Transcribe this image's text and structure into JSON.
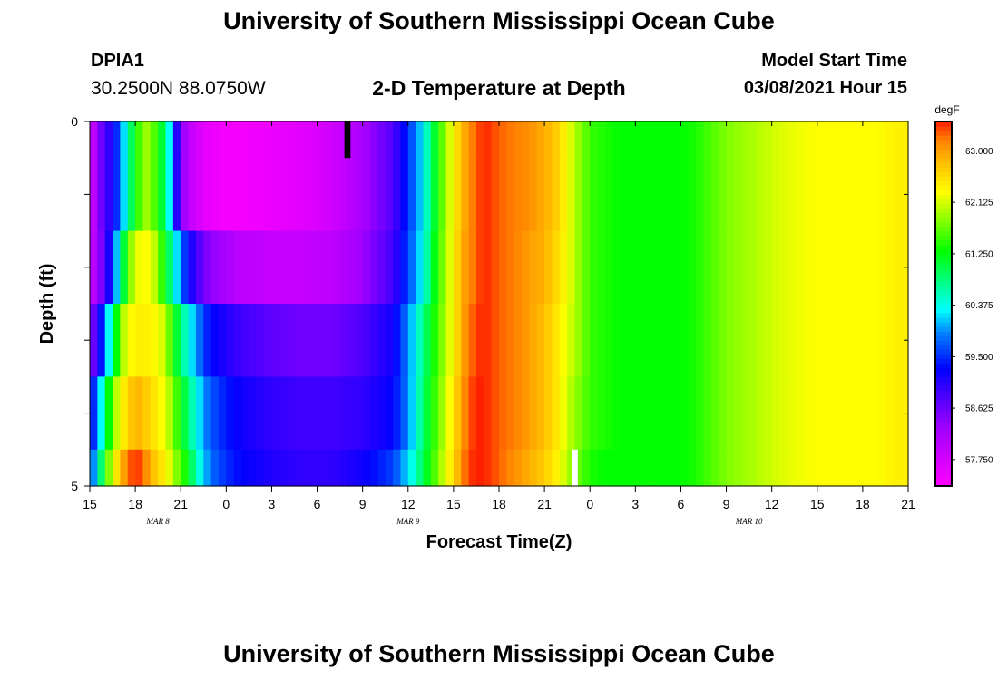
{
  "header": {
    "title": "University of Southern Mississippi Ocean Cube",
    "station_id": "DPIA1",
    "coords": "30.2500N 88.0750W",
    "plot_title": "2-D Temperature at Depth",
    "model_start_label": "Model Start Time",
    "model_start_value": "03/08/2021 Hour 15"
  },
  "footer": {
    "title": "University of Southern Mississippi Ocean Cube"
  },
  "colors": {
    "background": "#ffffff",
    "axis": "#000000",
    "marker_black": "#000000",
    "marker_white": "#ffffff"
  },
  "chart_data": {
    "type": "heatmap",
    "title": "2-D Temperature at Depth",
    "xlabel": "Forecast Time(Z)",
    "ylabel": "Depth (ft)",
    "x_unit": "hours since 03/08 15Z",
    "x_range": [
      0,
      54
    ],
    "y_range": [
      0,
      5
    ],
    "x_tick_hours": [
      0,
      3,
      6,
      9,
      12,
      15,
      18,
      21,
      24,
      27,
      30,
      33,
      36,
      39,
      42,
      45,
      48,
      51,
      54
    ],
    "x_tick_labels": [
      "15",
      "18",
      "21",
      "0",
      "3",
      "6",
      "9",
      "12",
      "15",
      "18",
      "21",
      "0",
      "3",
      "6",
      "9",
      "12",
      "15",
      "18",
      "21"
    ],
    "y_tick_values": [
      0,
      1,
      2,
      3,
      4,
      5
    ],
    "y_tick_labels": [
      "0",
      "",
      "",
      "",
      "",
      "5"
    ],
    "date_labels": [
      {
        "text": "MAR 8",
        "hour": 4.5
      },
      {
        "text": "MAR 9",
        "hour": 21
      },
      {
        "text": "MAR 10",
        "hour": 43.5
      }
    ],
    "colorbar": {
      "unit": "degF",
      "min": 57.3,
      "max": 63.5,
      "ticks": [
        "63.000",
        "62.125",
        "61.250",
        "60.375",
        "59.500",
        "58.625",
        "57.750"
      ],
      "tick_values": [
        63.0,
        62.125,
        61.25,
        60.375,
        59.5,
        58.625,
        57.75
      ],
      "colors": [
        "#ff00ff",
        "#a000ff",
        "#4000ff",
        "#0000ff",
        "#0080ff",
        "#00ffff",
        "#00ff80",
        "#00ff00",
        "#80ff00",
        "#ffff00",
        "#ffc000",
        "#ff8000",
        "#ff2000"
      ],
      "color_values": [
        57.3,
        58.3,
        58.9,
        59.3,
        59.9,
        60.3,
        60.8,
        61.3,
        61.8,
        62.3,
        62.8,
        63.2,
        63.5
      ]
    },
    "depth_layers": [
      0,
      0.5,
      1.5,
      2.5,
      3.5,
      4.5
    ],
    "profile_hours": [
      0,
      0.5,
      1,
      1.5,
      2,
      2.5,
      3,
      3.5,
      4,
      4.5,
      5,
      5.5,
      6,
      6.5,
      7,
      7.5,
      8,
      9,
      10,
      12,
      14,
      16,
      18,
      20,
      21,
      22,
      23,
      24,
      24.5,
      25,
      25.5,
      26,
      26.5,
      27,
      28,
      29,
      30,
      30.5,
      31,
      31.5,
      32,
      32.5,
      33,
      34,
      35,
      36,
      37,
      38,
      39,
      40,
      41,
      42,
      44,
      46,
      48,
      50,
      52,
      53,
      54
    ],
    "profiles": [
      [
        57.6,
        58.4,
        58.8,
        59.2,
        59.8,
        60.6,
        61.3,
        61.8,
        62.0,
        61.2,
        61.0,
        59.6,
        58.5,
        58.0,
        57.8,
        57.6,
        57.5,
        57.4,
        57.4,
        57.5,
        57.6,
        57.8,
        58.2,
        58.8,
        59.5,
        60.3,
        61.4,
        62.4,
        62.8,
        63.1,
        63.3,
        63.5,
        63.4,
        63.3,
        63.2,
        63.1,
        62.9,
        62.8,
        62.6,
        62.3,
        62.0,
        61.8,
        61.5,
        61.4,
        61.3,
        61.3,
        61.3,
        61.3,
        61.3,
        61.4,
        61.6,
        61.8,
        62.0,
        62.2,
        62.3,
        62.3,
        62.3,
        62.4,
        62.4
      ],
      [
        57.6,
        58.4,
        58.8,
        59.2,
        59.8,
        60.6,
        61.3,
        61.8,
        62.0,
        61.2,
        61.0,
        59.6,
        58.5,
        58.0,
        57.8,
        57.6,
        57.5,
        57.4,
        57.4,
        57.5,
        57.6,
        57.8,
        58.2,
        58.8,
        59.5,
        60.3,
        61.4,
        62.4,
        62.8,
        63.1,
        63.3,
        63.5,
        63.4,
        63.3,
        63.2,
        63.1,
        62.9,
        62.8,
        62.6,
        62.3,
        62.0,
        61.8,
        61.5,
        61.4,
        61.3,
        61.3,
        61.3,
        61.3,
        61.3,
        61.4,
        61.6,
        61.8,
        62.0,
        62.2,
        62.3,
        62.3,
        62.3,
        62.4,
        62.4
      ],
      [
        57.8,
        58.3,
        58.7,
        59.6,
        60.6,
        61.6,
        62.2,
        62.3,
        62.3,
        61.8,
        61.2,
        60.6,
        59.8,
        59.3,
        58.9,
        58.6,
        58.4,
        58.2,
        58.0,
        57.9,
        57.9,
        58.0,
        58.3,
        58.9,
        59.6,
        60.4,
        61.5,
        62.4,
        62.9,
        63.1,
        63.3,
        63.5,
        63.4,
        63.3,
        63.2,
        63.0,
        62.9,
        62.7,
        62.5,
        62.3,
        62.0,
        61.8,
        61.5,
        61.4,
        61.3,
        61.3,
        61.3,
        61.3,
        61.3,
        61.4,
        61.6,
        61.8,
        62.0,
        62.2,
        62.3,
        62.3,
        62.3,
        62.4,
        62.4
      ],
      [
        58.3,
        59.0,
        59.8,
        60.8,
        61.8,
        62.3,
        62.4,
        62.4,
        62.4,
        62.3,
        62.0,
        61.4,
        60.8,
        60.4,
        60.0,
        59.6,
        59.3,
        59.1,
        58.9,
        58.7,
        58.6,
        58.6,
        58.8,
        59.2,
        59.9,
        60.8,
        61.6,
        62.4,
        62.9,
        63.2,
        63.4,
        63.5,
        63.4,
        63.3,
        63.2,
        63.0,
        62.8,
        62.6,
        62.4,
        62.2,
        62.0,
        61.8,
        61.5,
        61.4,
        61.3,
        61.3,
        61.3,
        61.3,
        61.3,
        61.4,
        61.6,
        61.8,
        62.0,
        62.2,
        62.3,
        62.3,
        62.3,
        62.4,
        62.4
      ],
      [
        59.2,
        59.8,
        60.8,
        61.8,
        62.3,
        62.6,
        62.9,
        62.8,
        62.6,
        62.4,
        62.2,
        61.8,
        61.3,
        60.8,
        60.4,
        60.0,
        59.7,
        59.4,
        59.2,
        59.0,
        58.9,
        58.9,
        59.0,
        59.3,
        59.9,
        60.9,
        61.7,
        62.5,
        63.0,
        63.3,
        63.5,
        63.5,
        63.4,
        63.3,
        63.2,
        63.0,
        62.8,
        62.6,
        62.4,
        62.1,
        61.9,
        61.7,
        61.5,
        61.4,
        61.3,
        61.3,
        61.3,
        61.3,
        61.3,
        61.4,
        61.6,
        61.8,
        62.0,
        62.2,
        62.3,
        62.3,
        62.3,
        62.4,
        62.4
      ],
      [
        59.6,
        60.3,
        61.4,
        62.2,
        62.8,
        63.2,
        63.5,
        63.3,
        62.9,
        62.6,
        62.4,
        62.0,
        61.6,
        61.2,
        60.6,
        60.2,
        59.8,
        59.5,
        59.3,
        59.1,
        59.0,
        59.0,
        59.2,
        59.6,
        60.2,
        61.0,
        61.8,
        62.6,
        63.1,
        63.4,
        63.5,
        63.5,
        63.4,
        63.3,
        63.1,
        62.9,
        62.7,
        62.5,
        62.3,
        62.0,
        61.8,
        61.6,
        61.4,
        61.3,
        61.3,
        61.3,
        61.3,
        61.3,
        61.3,
        61.4,
        61.6,
        61.8,
        62.0,
        62.2,
        62.3,
        62.3,
        62.3,
        62.4,
        62.4
      ]
    ],
    "markers": [
      {
        "color": "black",
        "hour_start": 16.8,
        "hour_end": 17.2,
        "depth_start": 0,
        "depth_end": 0.5
      },
      {
        "color": "white",
        "hour_start": 31.8,
        "hour_end": 32.2,
        "depth_start": 4.5,
        "depth_end": 5
      }
    ]
  }
}
